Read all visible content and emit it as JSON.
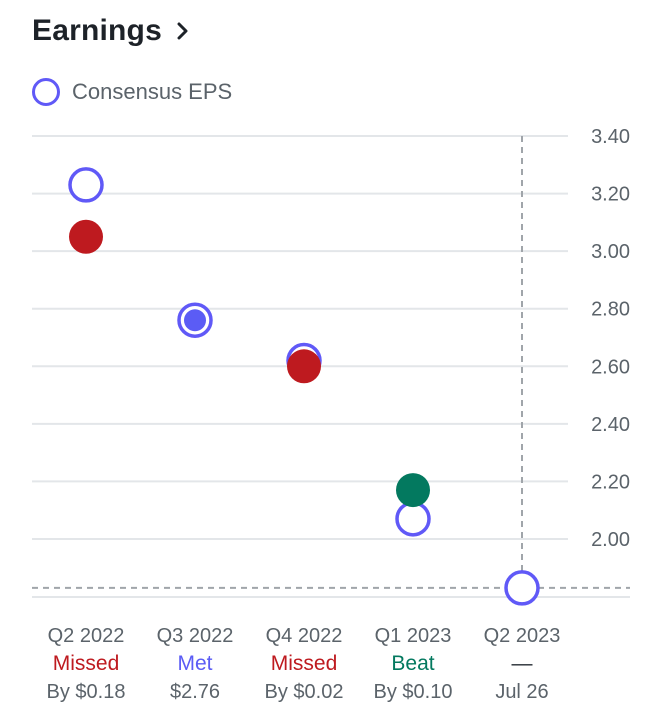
{
  "header": {
    "title": "Earnings",
    "chevron_icon": "chevron-right-icon"
  },
  "legend": {
    "label": "Consensus EPS",
    "color": "#6059f7"
  },
  "colors": {
    "missed": "#be1a1f",
    "met": "#5b5cf5",
    "beat": "#03795f",
    "consensus": "#6059f7",
    "grid": "#e3e6e9",
    "dashed": "#a0a5aa"
  },
  "chart_data": {
    "type": "scatter",
    "categories": [
      "Q2 2022",
      "Q3 2022",
      "Q4 2022",
      "Q1 2023",
      "Q2 2023"
    ],
    "series": [
      {
        "name": "Consensus EPS",
        "values": [
          3.23,
          2.76,
          2.62,
          2.07,
          1.83
        ]
      },
      {
        "values": [
          3.05,
          2.76,
          2.6,
          2.17,
          null
        ]
      }
    ],
    "ylim": [
      1.8,
      3.4
    ],
    "yticks": [
      "3.40",
      "3.20",
      "3.00",
      "2.80",
      "2.60",
      "2.40",
      "2.20",
      "2.00"
    ],
    "grid": true,
    "legend_position": "top-left"
  },
  "columns": [
    {
      "quarter": "Q2 2022",
      "status": "Missed",
      "status_kind": "missed",
      "detail": "By $0.18"
    },
    {
      "quarter": "Q3 2022",
      "status": "Met",
      "status_kind": "met",
      "detail": "$2.76"
    },
    {
      "quarter": "Q4 2022",
      "status": "Missed",
      "status_kind": "missed",
      "detail": "By $0.02"
    },
    {
      "quarter": "Q1 2023",
      "status": "Beat",
      "status_kind": "beat",
      "detail": "By $0.10"
    },
    {
      "quarter": "Q2 2023",
      "status": "—",
      "status_kind": "pending",
      "detail": "Jul 26"
    }
  ]
}
